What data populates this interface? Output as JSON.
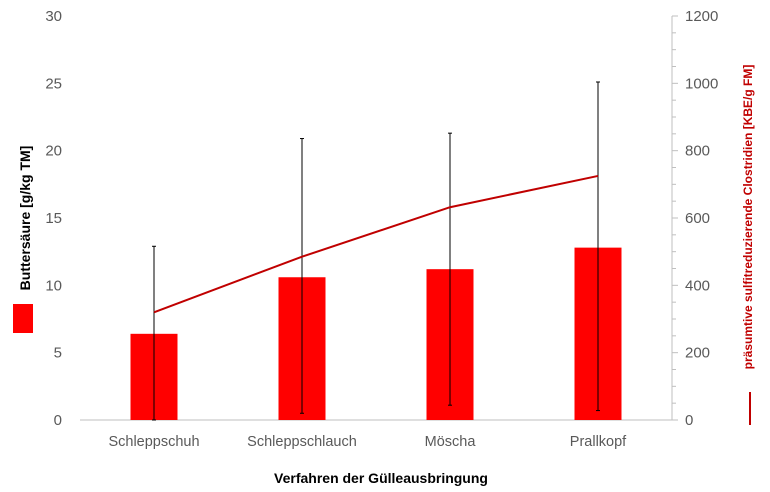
{
  "chart_data": {
    "type": "bar",
    "title": "",
    "xlabel": "Verfahren der Gülleausbringung",
    "ylabel": "Buttersäure [g/kg TM]",
    "y2label": "präsumtive sulfitreduzierende Clostridien [KBE/g FM]",
    "categories": [
      "Schleppschuh",
      "Schleppschlauch",
      "Möscha",
      "Prallkopf"
    ],
    "ylim": [
      0,
      30
    ],
    "yticks": [
      0,
      5,
      10,
      15,
      20,
      25,
      30
    ],
    "y2lim": [
      0,
      1200
    ],
    "y2ticks": [
      0,
      200,
      400,
      600,
      800,
      1000,
      1200
    ],
    "grid": false,
    "legend": "left and right of the plot, next to each axis title",
    "series": [
      {
        "kind": "bar",
        "axis": "left",
        "color": "#ff0000",
        "values": [
          6.4,
          10.6,
          11.2,
          12.8
        ],
        "error_low": [
          0.0,
          0.5,
          1.1,
          0.7
        ],
        "error_high": [
          12.9,
          20.9,
          21.3,
          25.1
        ]
      },
      {
        "kind": "line",
        "axis": "right",
        "color": "#c00000",
        "values": [
          320,
          485,
          632,
          725
        ]
      }
    ]
  }
}
